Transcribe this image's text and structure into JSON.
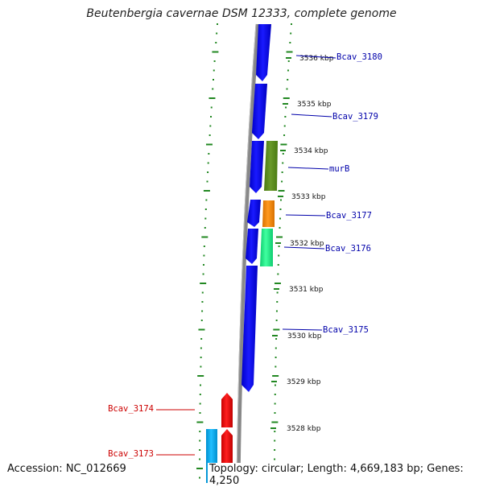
{
  "title": "Beutenbergia cavernae DSM 12333, complete genome",
  "accession_text": "Accession: NC_012669",
  "topology_text": "Topology: circular; Length: 4,669,183 bp; Genes: 4,250",
  "colors": {
    "forward_strand_gene": "#0000ee",
    "reverse_strand_gene": "#ee0000",
    "murB_gene": "#5a8a1e",
    "Bcav_3177_gene": "#f08a10",
    "Bcav_3176_gene": "#22ee88",
    "reverse_other_gene": "#00aaee",
    "backbone": "#888888",
    "dotted_ring": "#228822",
    "forward_label": "#0000aa",
    "reverse_label": "#cc0000"
  },
  "position_ticks": [
    "3536 kbp",
    "3535 kbp",
    "3534 kbp",
    "3533 kbp",
    "3532 kbp",
    "3531 kbp",
    "3530 kbp",
    "3529 kbp",
    "3528 kbp"
  ],
  "forward_gene_labels": [
    "Bcav_3180",
    "Bcav_3179",
    "murB",
    "Bcav_3177",
    "Bcav_3176",
    "Bcav_3175"
  ],
  "reverse_gene_labels": [
    "Bcav_3174",
    "Bcav_3173"
  ]
}
